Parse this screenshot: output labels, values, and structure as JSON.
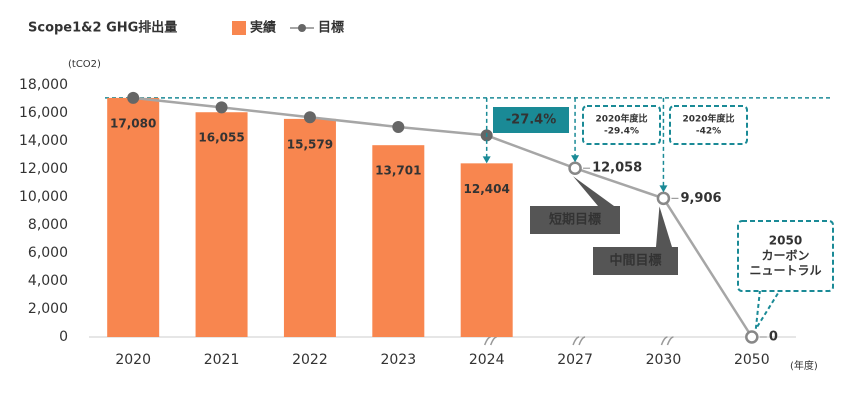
{
  "chart_data": {
    "type": "bar",
    "title": "Scope1&2  GHG排出量",
    "y_unit": "(tCO2)",
    "x_unit": "(年度)",
    "categories": [
      "2020",
      "2021",
      "2022",
      "2023",
      "2024",
      "2027",
      "2030",
      "2050"
    ],
    "series": [
      {
        "name": "実績",
        "type": "bar",
        "color": "#f8864f",
        "values": [
          17080,
          16055,
          15579,
          13701,
          12404,
          null,
          null,
          null
        ],
        "value_labels": [
          "17,080",
          "16,055",
          "15,579",
          "13,701",
          "12,404",
          null,
          null,
          null
        ]
      },
      {
        "name": "目標",
        "type": "line",
        "color": "#a6a6a6",
        "marker_color": "#666666",
        "values": [
          17080,
          16400,
          15700,
          15000,
          14400,
          12058,
          9906,
          0
        ],
        "value_labels": [
          null,
          null,
          null,
          null,
          null,
          "12,058",
          "9,906",
          "0"
        ]
      }
    ],
    "ylim": [
      0,
      18000
    ],
    "yticks": [
      0,
      {
        "value": 2000,
        "label": "2,000"
      },
      {
        "value": 4000,
        "label": "4,000"
      },
      {
        "value": 6000,
        "label": "6,000"
      },
      {
        "value": 8000,
        "label": "8,000"
      },
      {
        "value": 10000,
        "label": "10,000"
      },
      {
        "value": 12000,
        "label": "12,000"
      },
      {
        "value": 14000,
        "label": "14,000"
      },
      {
        "value": 16000,
        "label": "16,000"
      },
      {
        "value": 18000,
        "label": "18,000"
      }
    ],
    "accent_color": "#1a8a96",
    "annotations": {
      "reduction_2024": "-27.4%",
      "ratio_2027": [
        "2020年度比",
        "-29.4%"
      ],
      "ratio_2030": [
        "2020年度比",
        "-42%"
      ],
      "label_2027": "短期目標",
      "label_2030": "中間目標",
      "label_2050": [
        "2050",
        "カーボン",
        "ニュートラル"
      ]
    }
  }
}
